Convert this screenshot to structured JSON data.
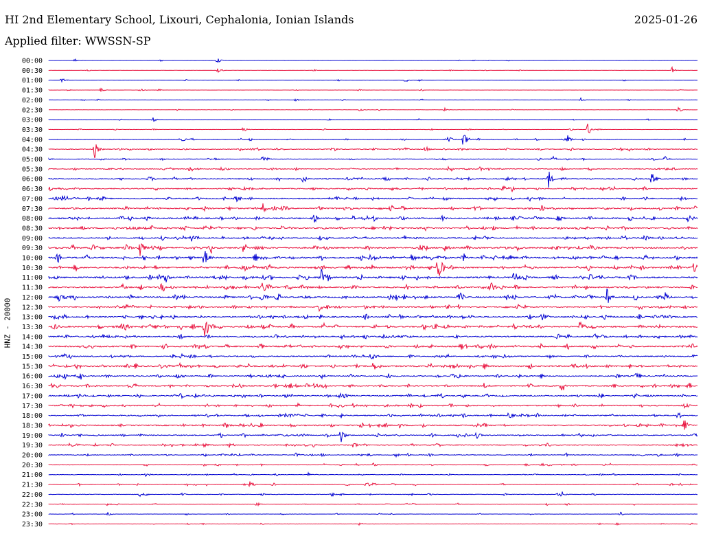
{
  "header": {
    "station": "HI 2nd Elementary School, Lixouri, Cephalonia, Ionian Islands",
    "date": "2025-01-26",
    "filter": "Applied filter: WWSSN-SP"
  },
  "chart_data": {
    "type": "line",
    "title": "HI 2nd Elementary School, Lixouri, Cephalonia, Ionian Islands",
    "ylabel": "HNZ - 20000",
    "row_interval_minutes": 30,
    "colors": {
      "even_rows": "#0000d0",
      "odd_rows": "#e8103c"
    },
    "rows": [
      {
        "label": "00:00",
        "noise": 0.15,
        "events": [
          [
            0.26,
            6
          ],
          [
            0.04,
            3
          ]
        ]
      },
      {
        "label": "00:30",
        "noise": 0.15,
        "events": [
          [
            0.26,
            7
          ],
          [
            0.96,
            6
          ]
        ]
      },
      {
        "label": "01:00",
        "noise": 0.2,
        "events": [
          [
            0.02,
            3
          ],
          [
            0.55,
            3
          ]
        ]
      },
      {
        "label": "01:30",
        "noise": 0.2,
        "events": [
          [
            0.08,
            4
          ],
          [
            0.14,
            3
          ]
        ]
      },
      {
        "label": "02:00",
        "noise": 0.2,
        "events": [
          [
            0.38,
            3
          ],
          [
            0.82,
            3
          ]
        ]
      },
      {
        "label": "02:30",
        "noise": 0.2,
        "events": [
          [
            0.48,
            3
          ],
          [
            0.61,
            3
          ],
          [
            0.97,
            3
          ]
        ]
      },
      {
        "label": "03:00",
        "noise": 0.2,
        "events": [
          [
            0.16,
            3
          ]
        ]
      },
      {
        "label": "03:30",
        "noise": 0.3,
        "events": [
          [
            0.3,
            4
          ],
          [
            0.83,
            14
          ]
        ]
      },
      {
        "label": "04:00",
        "noise": 0.6,
        "events": [
          [
            0.64,
            14
          ],
          [
            0.8,
            6
          ]
        ]
      },
      {
        "label": "04:30",
        "noise": 0.8,
        "events": [
          [
            0.07,
            16
          ],
          [
            0.58,
            6
          ]
        ]
      },
      {
        "label": "05:00",
        "noise": 0.6,
        "events": [
          [
            0.33,
            4
          ],
          [
            0.95,
            4
          ]
        ]
      },
      {
        "label": "05:30",
        "noise": 0.9,
        "events": [
          [
            0.79,
            4
          ]
        ]
      },
      {
        "label": "06:00",
        "noise": 1.0,
        "events": [
          [
            0.77,
            16
          ],
          [
            0.93,
            14
          ]
        ]
      },
      {
        "label": "06:30",
        "noise": 1.0,
        "events": [
          [
            0.7,
            4
          ]
        ]
      },
      {
        "label": "07:00",
        "noise": 1.1,
        "events": [
          [
            0.5,
            5
          ],
          [
            0.61,
            4
          ]
        ]
      },
      {
        "label": "07:30",
        "noise": 1.3,
        "events": [
          [
            0.24,
            4
          ],
          [
            0.33,
            4
          ]
        ]
      },
      {
        "label": "08:00",
        "noise": 1.3,
        "events": [
          [
            0.41,
            4
          ],
          [
            0.75,
            4
          ]
        ]
      },
      {
        "label": "08:30",
        "noise": 1.3,
        "events": [
          [
            0.58,
            4
          ],
          [
            0.86,
            5
          ]
        ]
      },
      {
        "label": "09:00",
        "noise": 1.1,
        "events": [
          [
            0.22,
            4
          ],
          [
            0.92,
            4
          ]
        ]
      },
      {
        "label": "09:30",
        "noise": 1.5,
        "events": [
          [
            0.14,
            16
          ],
          [
            0.61,
            5
          ]
        ]
      },
      {
        "label": "10:00",
        "noise": 1.5,
        "events": [
          [
            0.24,
            16
          ],
          [
            0.56,
            5
          ],
          [
            0.71,
            5
          ]
        ]
      },
      {
        "label": "10:30",
        "noise": 1.5,
        "events": [
          [
            0.6,
            14
          ]
        ]
      },
      {
        "label": "11:00",
        "noise": 1.5,
        "events": [
          [
            0.18,
            6
          ],
          [
            0.42,
            20
          ]
        ]
      },
      {
        "label": "11:30",
        "noise": 1.4,
        "events": [
          [
            0.72,
            4
          ]
        ]
      },
      {
        "label": "12:00",
        "noise": 1.4,
        "events": [
          [
            0.86,
            16
          ],
          [
            0.95,
            7
          ]
        ]
      },
      {
        "label": "12:30",
        "noise": 1.2,
        "events": [
          [
            0.59,
            4
          ]
        ]
      },
      {
        "label": "13:00",
        "noise": 1.3,
        "events": [
          [
            0.54,
            5
          ],
          [
            0.91,
            4
          ]
        ]
      },
      {
        "label": "13:30",
        "noise": 1.5,
        "events": [
          [
            0.24,
            18
          ],
          [
            0.82,
            14
          ]
        ]
      },
      {
        "label": "14:00",
        "noise": 1.3,
        "events": [
          [
            0.2,
            5
          ]
        ]
      },
      {
        "label": "14:30",
        "noise": 1.3,
        "events": [
          [
            0.52,
            4
          ]
        ]
      },
      {
        "label": "15:00",
        "noise": 1.1,
        "events": [
          [
            0.77,
            4
          ]
        ]
      },
      {
        "label": "15:30",
        "noise": 1.4,
        "events": [
          [
            0.5,
            4
          ]
        ]
      },
      {
        "label": "16:00",
        "noise": 1.2,
        "events": [
          [
            0.63,
            4
          ]
        ]
      },
      {
        "label": "16:30",
        "noise": 1.2,
        "events": [
          [
            0.41,
            5
          ],
          [
            0.67,
            5
          ]
        ]
      },
      {
        "label": "17:00",
        "noise": 1.2,
        "events": [
          [
            0.3,
            4
          ]
        ]
      },
      {
        "label": "17:30",
        "noise": 1.1,
        "events": [
          [
            0.47,
            4
          ]
        ]
      },
      {
        "label": "18:00",
        "noise": 1.1,
        "events": [
          [
            0.71,
            6
          ],
          [
            0.45,
            4
          ]
        ]
      },
      {
        "label": "18:30",
        "noise": 1.2,
        "events": [
          [
            0.98,
            12
          ],
          [
            0.54,
            4
          ]
        ]
      },
      {
        "label": "19:00",
        "noise": 1.0,
        "events": [
          [
            0.45,
            14
          ],
          [
            0.66,
            5
          ]
        ]
      },
      {
        "label": "19:30",
        "noise": 0.9,
        "events": [
          [
            0.24,
            5
          ],
          [
            0.47,
            6
          ]
        ]
      },
      {
        "label": "20:00",
        "noise": 0.7,
        "events": [
          [
            0.38,
            4
          ],
          [
            0.94,
            4
          ]
        ]
      },
      {
        "label": "20:30",
        "noise": 0.6,
        "events": [
          [
            0.5,
            3
          ]
        ]
      },
      {
        "label": "21:00",
        "noise": 0.5,
        "events": [
          [
            0.15,
            5
          ],
          [
            0.4,
            4
          ]
        ]
      },
      {
        "label": "21:30",
        "noise": 0.6,
        "events": [
          [
            0.31,
            5
          ],
          [
            0.5,
            4
          ]
        ]
      },
      {
        "label": "22:00",
        "noise": 0.5,
        "events": [
          [
            0.14,
            4
          ],
          [
            0.79,
            5
          ]
        ]
      },
      {
        "label": "22:30",
        "noise": 0.4,
        "events": [
          [
            0.09,
            4
          ],
          [
            0.32,
            4
          ]
        ]
      },
      {
        "label": "23:00",
        "noise": 0.3,
        "events": [
          [
            0.09,
            4
          ],
          [
            0.88,
            4
          ]
        ]
      },
      {
        "label": "23:30",
        "noise": 0.3,
        "events": [
          [
            0.48,
            3
          ]
        ]
      }
    ]
  }
}
